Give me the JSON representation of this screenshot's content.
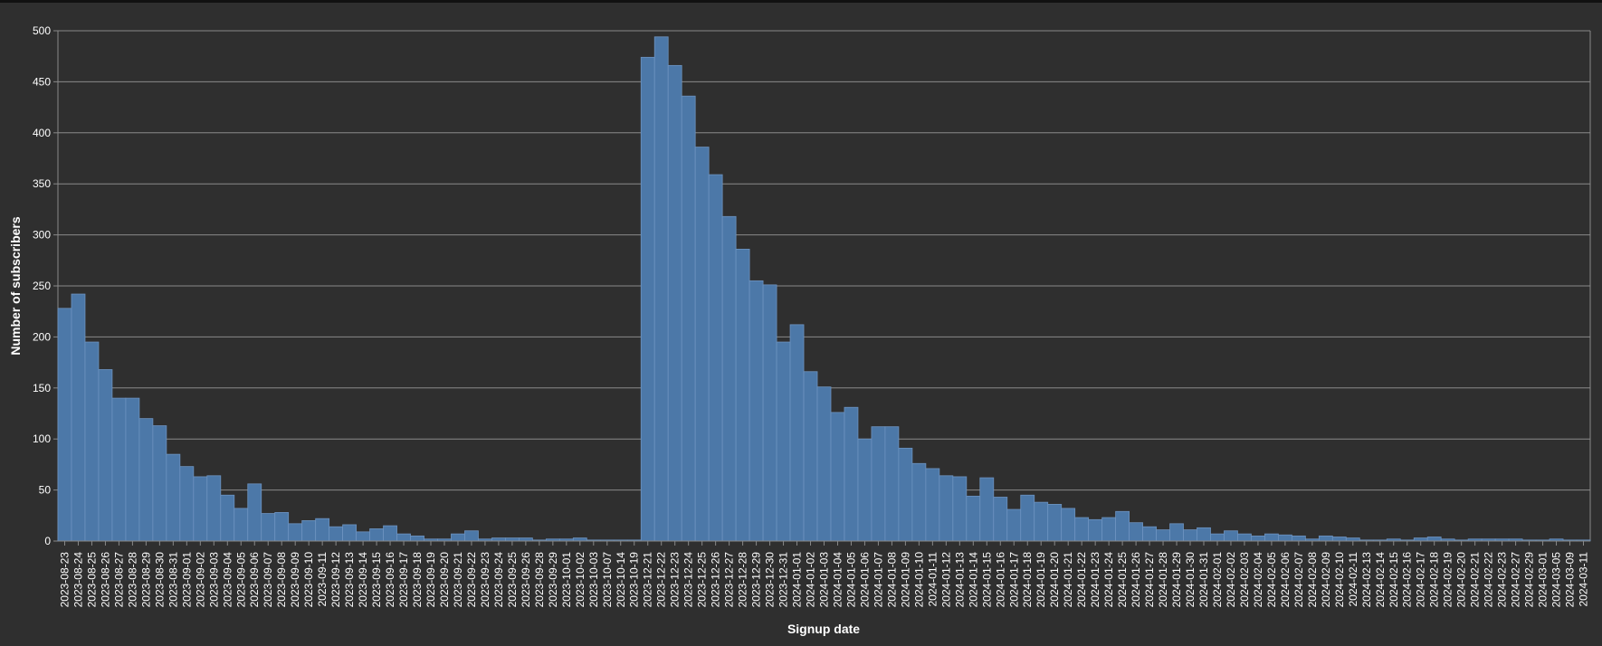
{
  "chart_data": {
    "type": "bar",
    "x_label": "Signup date",
    "y_label": "Number of subscribers",
    "color": "#4c78a8",
    "grid": true,
    "ylim": [
      0,
      500
    ],
    "yticks": [
      0,
      50,
      100,
      150,
      200,
      250,
      300,
      350,
      400,
      450,
      500
    ],
    "categories": [
      "2023-08-23",
      "2023-08-24",
      "2023-08-25",
      "2023-08-26",
      "2023-08-27",
      "2023-08-28",
      "2023-08-29",
      "2023-08-30",
      "2023-08-31",
      "2023-09-01",
      "2023-09-02",
      "2023-09-03",
      "2023-09-04",
      "2023-09-05",
      "2023-09-06",
      "2023-09-07",
      "2023-09-08",
      "2023-09-09",
      "2023-09-10",
      "2023-09-11",
      "2023-09-12",
      "2023-09-13",
      "2023-09-14",
      "2023-09-15",
      "2023-09-16",
      "2023-09-17",
      "2023-09-18",
      "2023-09-19",
      "2023-09-20",
      "2023-09-21",
      "2023-09-22",
      "2023-09-23",
      "2023-09-24",
      "2023-09-25",
      "2023-09-26",
      "2023-09-28",
      "2023-09-29",
      "2023-10-01",
      "2023-10-02",
      "2023-10-03",
      "2023-10-07",
      "2023-10-14",
      "2023-10-19",
      "2023-12-21",
      "2023-12-22",
      "2023-12-23",
      "2023-12-24",
      "2023-12-25",
      "2023-12-26",
      "2023-12-27",
      "2023-12-28",
      "2023-12-29",
      "2023-12-30",
      "2023-12-31",
      "2024-01-01",
      "2024-01-02",
      "2024-01-03",
      "2024-01-04",
      "2024-01-05",
      "2024-01-06",
      "2024-01-07",
      "2024-01-08",
      "2024-01-09",
      "2024-01-10",
      "2024-01-11",
      "2024-01-12",
      "2024-01-13",
      "2024-01-14",
      "2024-01-15",
      "2024-01-16",
      "2024-01-17",
      "2024-01-18",
      "2024-01-19",
      "2024-01-20",
      "2024-01-21",
      "2024-01-22",
      "2024-01-23",
      "2024-01-24",
      "2024-01-25",
      "2024-01-26",
      "2024-01-27",
      "2024-01-28",
      "2024-01-29",
      "2024-01-30",
      "2024-01-31",
      "2024-02-01",
      "2024-02-02",
      "2024-02-03",
      "2024-02-04",
      "2024-02-05",
      "2024-02-06",
      "2024-02-07",
      "2024-02-08",
      "2024-02-09",
      "2024-02-10",
      "2024-02-11",
      "2024-02-13",
      "2024-02-14",
      "2024-02-15",
      "2024-02-16",
      "2024-02-17",
      "2024-02-18",
      "2024-02-19",
      "2024-02-20",
      "2024-02-21",
      "2024-02-22",
      "2024-02-23",
      "2024-02-27",
      "2024-02-29",
      "2024-03-01",
      "2024-03-05",
      "2024-03-09",
      "2024-03-11"
    ],
    "values": [
      228,
      242,
      195,
      168,
      140,
      140,
      120,
      113,
      85,
      73,
      63,
      64,
      45,
      32,
      56,
      27,
      28,
      17,
      20,
      22,
      14,
      16,
      9,
      12,
      15,
      7,
      5,
      2,
      2,
      7,
      10,
      2,
      3,
      3,
      3,
      1,
      2,
      2,
      3,
      1,
      1,
      1,
      1,
      474,
      494,
      466,
      436,
      386,
      359,
      318,
      286,
      255,
      251,
      195,
      212,
      166,
      151,
      126,
      131,
      100,
      112,
      112,
      91,
      76,
      71,
      64,
      63,
      44,
      62,
      43,
      31,
      45,
      38,
      36,
      32,
      23,
      21,
      23,
      29,
      18,
      14,
      11,
      17,
      11,
      13,
      7,
      10,
      7,
      5,
      7,
      6,
      5,
      2,
      5,
      4,
      3,
      1,
      1,
      2,
      1,
      3,
      4,
      2,
      1,
      2,
      2,
      2,
      2,
      1,
      1,
      2,
      1,
      1
    ]
  }
}
